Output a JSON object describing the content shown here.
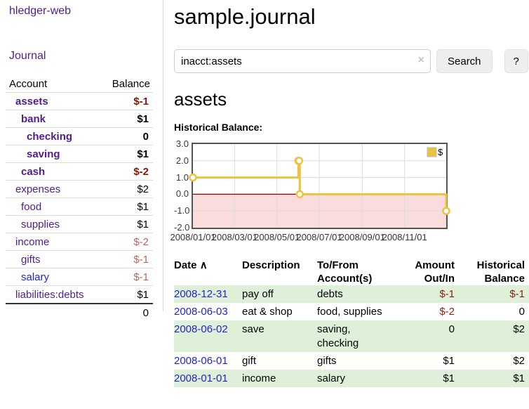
{
  "colors": {
    "link_purple": "#4f1d8f",
    "link_blue": "#2323cc",
    "negative_strong": "#8b1408",
    "negative_soft": "#b06a66",
    "row_stripe_green": "#dff0d8",
    "chart_line_gold": "#edc240",
    "negative_region_pink": "#fadcdc",
    "zero_line_red": "#8b0000"
  },
  "sidebar": {
    "app_title": "hledger-web",
    "nav": {
      "journal": "Journal"
    },
    "table": {
      "account_header": "Account",
      "balance_header": "Balance",
      "accounts": [
        {
          "name": "assets",
          "indent": 0,
          "bold": true,
          "balance": "$-1",
          "neg": "strong"
        },
        {
          "name": "bank",
          "indent": 1,
          "bold": true,
          "balance": "$1"
        },
        {
          "name": "checking",
          "indent": 2,
          "bold": true,
          "balance": "0"
        },
        {
          "name": "saving",
          "indent": 2,
          "bold": true,
          "balance": "$1"
        },
        {
          "name": "cash",
          "indent": 1,
          "bold": true,
          "balance": "$-2",
          "neg": "strong"
        },
        {
          "name": "expenses",
          "indent": 0,
          "bold": false,
          "balance": "$2"
        },
        {
          "name": "food",
          "indent": 1,
          "bold": false,
          "balance": "$1"
        },
        {
          "name": "supplies",
          "indent": 1,
          "bold": false,
          "balance": "$1"
        },
        {
          "name": "income",
          "indent": 0,
          "bold": false,
          "balance": "$-2",
          "neg": "soft"
        },
        {
          "name": "gifts",
          "indent": 1,
          "bold": false,
          "balance": "$-1",
          "neg": "soft"
        },
        {
          "name": "salary",
          "indent": 1,
          "bold": false,
          "balance": "$-1",
          "neg": "soft",
          "blue": true
        },
        {
          "name": "liabilities:debts",
          "indent": 0,
          "bold": false,
          "balance": "$1"
        }
      ],
      "total": "0"
    }
  },
  "main": {
    "title": "sample.journal",
    "search": {
      "value": "inacct:assets",
      "clear_icon": "×",
      "button": "Search",
      "help": "?"
    },
    "account_heading": "assets",
    "chart_label": "Historical Balance:"
  },
  "chart_data": {
    "type": "line",
    "step": true,
    "title": "Historical Balance:",
    "x": [
      "2008-01-01",
      "2008-06-01",
      "2008-06-02",
      "2008-06-03",
      "2008-12-31"
    ],
    "series": [
      {
        "name": "$",
        "color": "#edc240",
        "values": [
          1,
          2,
          2,
          0,
          -1
        ]
      }
    ],
    "x_ticks": [
      "2008/01/01",
      "2008/03/01",
      "2008/05/01",
      "2008/07/01",
      "2008/09/01",
      "2008/11/01"
    ],
    "y_ticks": [
      "3.0",
      "2.0",
      "1.0",
      "0.0",
      "-1.0",
      "-2.0"
    ],
    "xlim": [
      "2008-01-01",
      "2008-12-31"
    ],
    "ylim": [
      -2,
      3
    ],
    "grid": true,
    "legend_position": "top-right",
    "legend_label": "$",
    "negative_region_color": "#fadcdc",
    "zero_line_color": "#8b0000"
  },
  "register": {
    "headers": [
      "Date",
      "Description",
      "To/From Account(s)",
      "Amount Out/In",
      "Historical Balance"
    ],
    "sort_icon": "∧",
    "rows": [
      {
        "date": "2008-12-31",
        "description": "pay off",
        "accounts": "debts",
        "amount": "$-1",
        "balance": "$-1"
      },
      {
        "date": "2008-06-03",
        "description": "eat & shop",
        "accounts": "food, supplies",
        "amount": "$-2",
        "balance": "0"
      },
      {
        "date": "2008-06-02",
        "description": "save",
        "accounts": "saving, checking",
        "amount": "0",
        "balance": "$2"
      },
      {
        "date": "2008-06-01",
        "description": "gift",
        "accounts": "gifts",
        "amount": "$1",
        "balance": "$2"
      },
      {
        "date": "2008-01-01",
        "description": "income",
        "accounts": "salary",
        "amount": "$1",
        "balance": "$1"
      }
    ]
  }
}
